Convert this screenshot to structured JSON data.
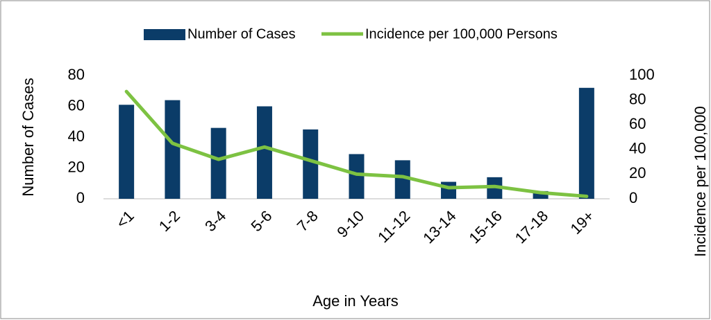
{
  "chart_data": {
    "type": "bar_line",
    "categories": [
      "<1",
      "1-2",
      "3-4",
      "5-6",
      "7-8",
      "9-10",
      "11-12",
      "13-14",
      "15-16",
      "17-18",
      "19+"
    ],
    "series": [
      {
        "name": "Number of Cases",
        "type": "bar",
        "color": "#0b3c68",
        "values": [
          61,
          64,
          46,
          60,
          45,
          29,
          25,
          11,
          14,
          5,
          72
        ]
      },
      {
        "name": "Incidence per 100,000 Persons",
        "type": "line",
        "axis": "y2",
        "color": "#7dc242",
        "values": [
          87,
          45,
          32,
          42,
          31,
          20,
          18,
          9,
          10,
          5,
          2
        ]
      }
    ],
    "xlabel": "Age in Years",
    "ylabel": "Number of Cases",
    "y2label": "Incidence per 100,000",
    "ylim": [
      0,
      80
    ],
    "yticks": [
      0,
      20,
      40,
      60,
      80
    ],
    "y2lim": [
      0,
      100
    ],
    "y2ticks": [
      0,
      20,
      40,
      60,
      80,
      100
    ],
    "legend": "top"
  }
}
